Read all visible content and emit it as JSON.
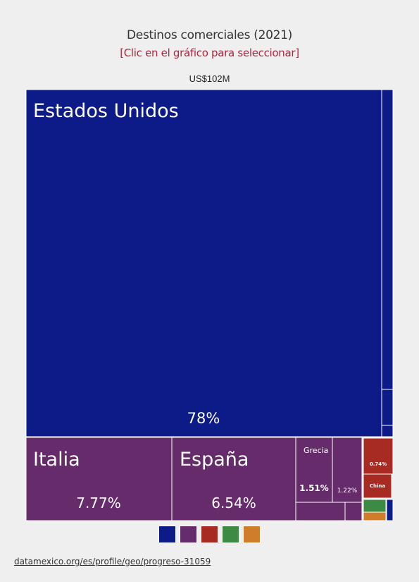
{
  "header": {
    "title": "Destinos comerciales (2021)",
    "subtitle": "[Clic en el gráfico para seleccionar]",
    "total": "US$102M"
  },
  "chart_data": {
    "type": "treemap",
    "total_label": "US$102M",
    "colors": {
      "america": "#0c1b87",
      "europe": "#652b6b",
      "asia": "#a72b22",
      "africa": "#3d8a45",
      "oceania": "#d07d2b"
    },
    "items": [
      {
        "name": "Estados Unidos",
        "label": "78%",
        "value": 78,
        "group": "america"
      },
      {
        "name": "Italia",
        "label": "7.77%",
        "value": 7.77,
        "group": "europe"
      },
      {
        "name": "España",
        "label": "6.54%",
        "value": 6.54,
        "group": "europe"
      },
      {
        "name": "Grecia",
        "label": "1.51%",
        "value": 1.51,
        "group": "europe"
      },
      {
        "name": "",
        "label": "1.22%",
        "value": 1.22,
        "group": "europe"
      },
      {
        "name": "",
        "label": "0.74%",
        "value": 0.74,
        "group": "asia"
      },
      {
        "name": "China",
        "label": "",
        "value": 0.5,
        "group": "asia"
      }
    ],
    "legend": [
      "america",
      "europe",
      "asia",
      "africa",
      "oceania"
    ]
  },
  "footer": {
    "source": "datamexico.org/es/profile/geo/progreso-31059"
  }
}
